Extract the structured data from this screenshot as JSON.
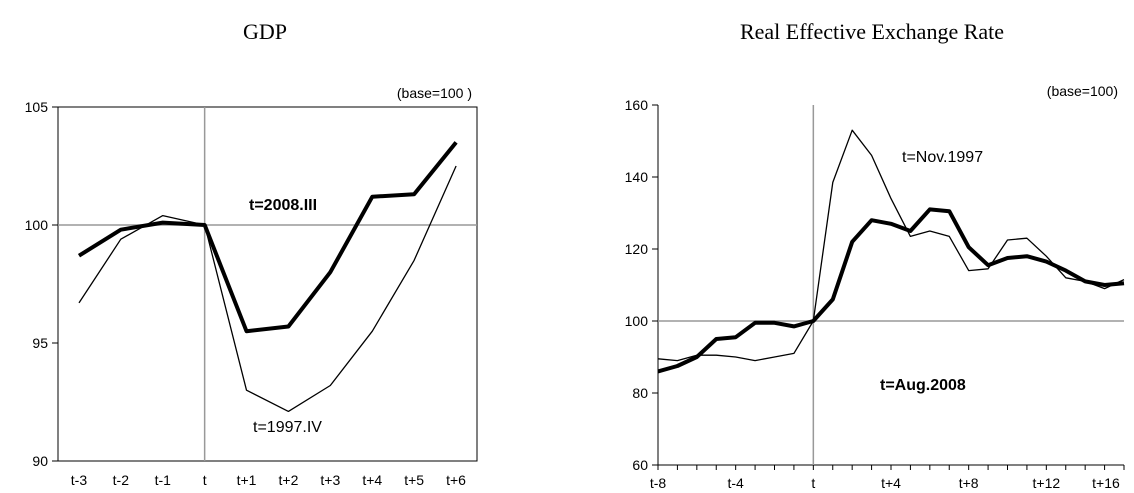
{
  "chart_data": [
    {
      "type": "line",
      "title": "GDP",
      "base_note": "(base=100 )",
      "x": [
        "t-3",
        "t-2",
        "t-1",
        "t",
        "t+1",
        "t+2",
        "t+3",
        "t+4",
        "t+5",
        "t+6"
      ],
      "ylim": [
        90,
        105
      ],
      "yticks": [
        90,
        95,
        100,
        105
      ],
      "reference_y": 100,
      "reference_x": "t",
      "series": [
        {
          "annotation": "t=2008.III",
          "style": "bold",
          "values": [
            98.7,
            99.8,
            100.1,
            100.0,
            95.5,
            95.7,
            98.0,
            101.2,
            101.3,
            103.5
          ]
        },
        {
          "annotation": "t=1997.IV",
          "style": "thin",
          "values": [
            96.7,
            99.4,
            100.4,
            100.0,
            93.0,
            92.1,
            93.2,
            95.5,
            98.5,
            102.5
          ]
        }
      ]
    },
    {
      "type": "line",
      "title": "Real Effective Exchange Rate",
      "base_note": "(base=100)",
      "x": [
        -8,
        -7,
        -6,
        -5,
        -4,
        -3,
        -2,
        -1,
        0,
        1,
        2,
        3,
        4,
        5,
        6,
        7,
        8,
        9,
        10,
        11,
        12,
        13,
        14,
        15,
        16
      ],
      "xtick_labels": [
        "t-8",
        "t-4",
        "t",
        "t+4",
        "t+8",
        "t+12",
        "t+16"
      ],
      "ylim": [
        60,
        160
      ],
      "yticks": [
        60,
        80,
        100,
        120,
        140,
        160
      ],
      "reference_y": 100,
      "reference_x": "t",
      "series": [
        {
          "annotation": "t=Aug.2008",
          "style": "bold",
          "values": [
            86,
            87.5,
            90,
            95,
            95.5,
            99.5,
            99.5,
            98.5,
            100,
            106,
            122,
            128,
            127,
            125,
            131,
            130.5,
            120.5,
            115.5,
            117.5,
            118,
            116.5,
            114,
            111,
            110,
            110.5
          ]
        },
        {
          "annotation": "t=Nov.1997",
          "style": "thin",
          "values": [
            89.5,
            89,
            90.5,
            90.5,
            90,
            89,
            90,
            91,
            100,
            138.5,
            153,
            146,
            134,
            123.5,
            125,
            123.5,
            114,
            114.5,
            122.5,
            123,
            118,
            112,
            111,
            109,
            111.5
          ]
        }
      ]
    }
  ]
}
